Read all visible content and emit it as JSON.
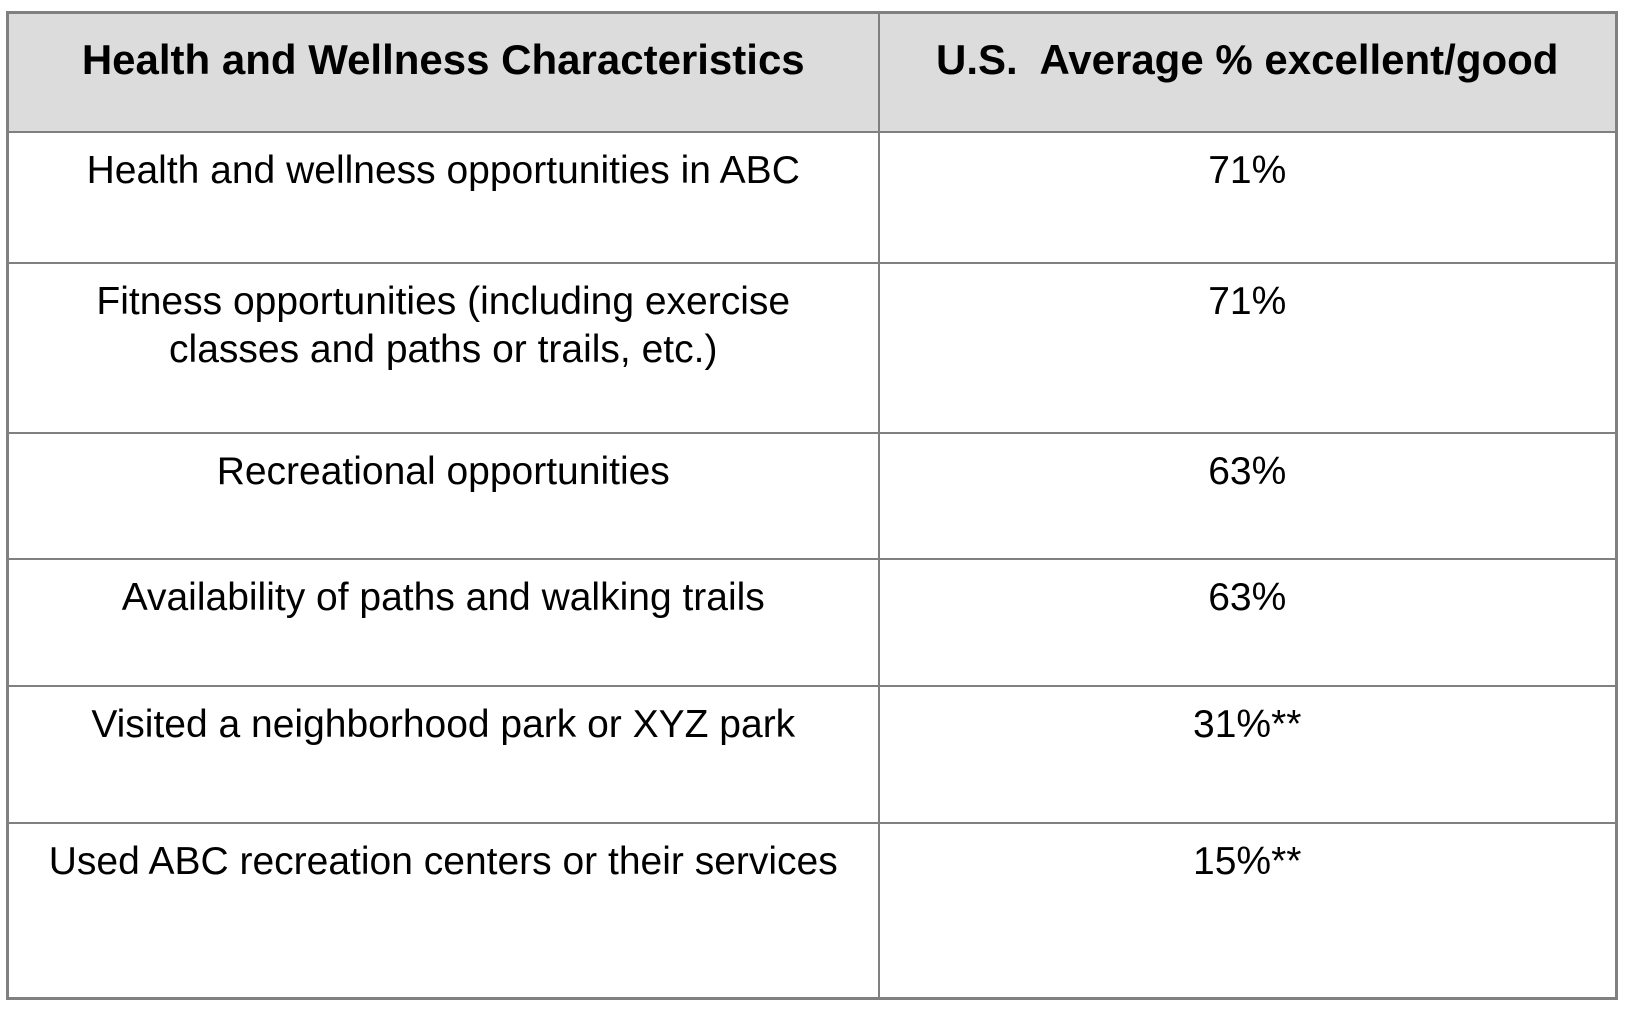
{
  "table": {
    "title_semantic": "health-and-wellness-ratings-table",
    "headers": {
      "characteristic": "Health and Wellness Characteristics",
      "value": "U.S.  Average % excellent/good"
    },
    "rows": [
      {
        "characteristic": "Health and wellness opportunities in ABC",
        "value": "71%"
      },
      {
        "characteristic": "Fitness opportunities (including exercise classes and paths or trails, etc.)",
        "value": "71%"
      },
      {
        "characteristic": "Recreational opportunities",
        "value": "63%"
      },
      {
        "characteristic": "Availability of paths and walking trails",
        "value": "63%"
      },
      {
        "characteristic": "Visited a neighborhood park or XYZ park",
        "value": "31%**"
      },
      {
        "characteristic": "Used ABC recreation centers or their services",
        "value": "15%**"
      }
    ],
    "colors": {
      "header_background": "#dcdcdc",
      "border": "#808080",
      "text": "#000000",
      "row_background": "#ffffff"
    }
  }
}
